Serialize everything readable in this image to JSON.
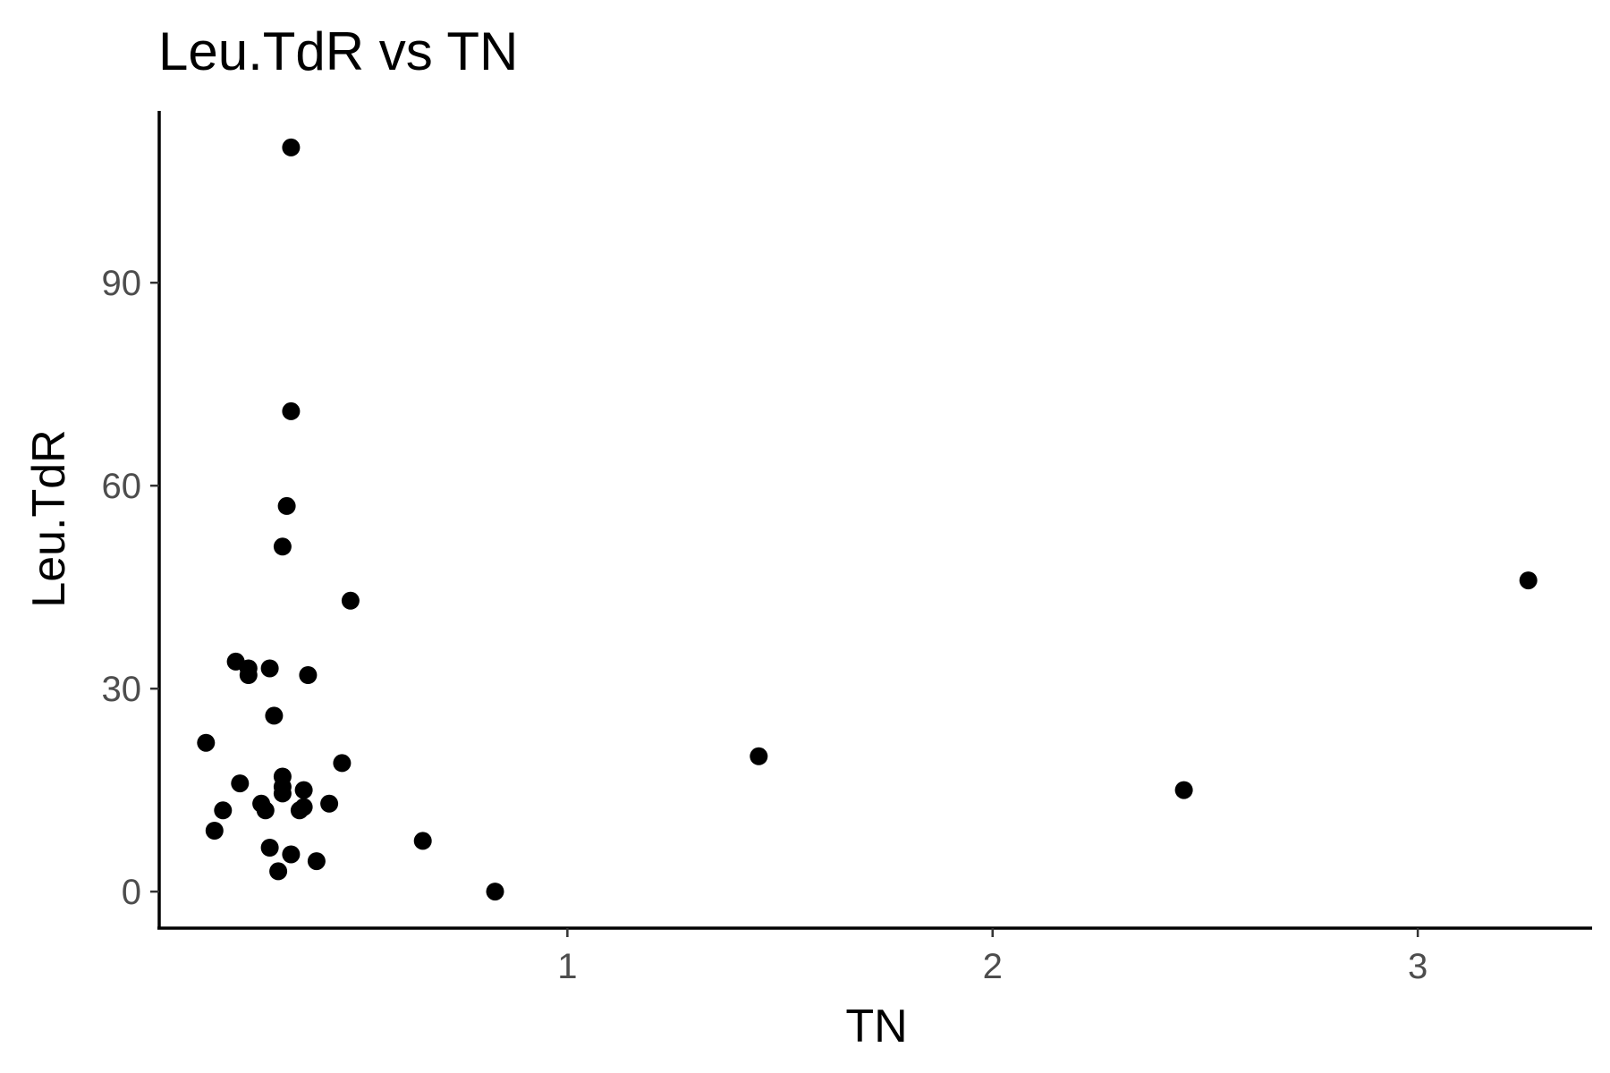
{
  "chart_data": {
    "type": "scatter",
    "title": "Leu.TdR vs TN",
    "xlabel": "TN",
    "ylabel": "Leu.TdR",
    "xlim": [
      0.04,
      3.41
    ],
    "ylim": [
      -5.4,
      115.4
    ],
    "x_ticks": [
      1,
      2,
      3
    ],
    "x_tick_labels": [
      "1",
      "2",
      "3"
    ],
    "y_ticks": [
      0,
      30,
      60,
      90
    ],
    "y_tick_labels": [
      "0",
      "30",
      "60",
      "90"
    ],
    "grid": false,
    "legend": "none",
    "point_color": "#000000",
    "points": [
      {
        "x": 0.35,
        "y": 110
      },
      {
        "x": 0.35,
        "y": 71
      },
      {
        "x": 0.34,
        "y": 57
      },
      {
        "x": 0.33,
        "y": 51
      },
      {
        "x": 0.49,
        "y": 43
      },
      {
        "x": 0.22,
        "y": 34
      },
      {
        "x": 0.25,
        "y": 33
      },
      {
        "x": 0.3,
        "y": 33
      },
      {
        "x": 0.25,
        "y": 32
      },
      {
        "x": 0.39,
        "y": 32
      },
      {
        "x": 0.31,
        "y": 26
      },
      {
        "x": 0.15,
        "y": 22
      },
      {
        "x": 0.47,
        "y": 19
      },
      {
        "x": 0.33,
        "y": 17
      },
      {
        "x": 0.23,
        "y": 16
      },
      {
        "x": 0.33,
        "y": 15.5
      },
      {
        "x": 0.33,
        "y": 14.5
      },
      {
        "x": 0.38,
        "y": 15
      },
      {
        "x": 0.28,
        "y": 13
      },
      {
        "x": 0.44,
        "y": 13
      },
      {
        "x": 0.38,
        "y": 12.5
      },
      {
        "x": 0.19,
        "y": 12
      },
      {
        "x": 0.29,
        "y": 12
      },
      {
        "x": 0.37,
        "y": 12
      },
      {
        "x": 0.17,
        "y": 9
      },
      {
        "x": 0.3,
        "y": 6.5
      },
      {
        "x": 0.35,
        "y": 5.5
      },
      {
        "x": 0.41,
        "y": 4.5
      },
      {
        "x": 0.32,
        "y": 3
      },
      {
        "x": 0.66,
        "y": 7.5
      },
      {
        "x": 0.83,
        "y": 0
      },
      {
        "x": 1.45,
        "y": 20
      },
      {
        "x": 2.45,
        "y": 15
      },
      {
        "x": 3.26,
        "y": 46
      }
    ]
  }
}
